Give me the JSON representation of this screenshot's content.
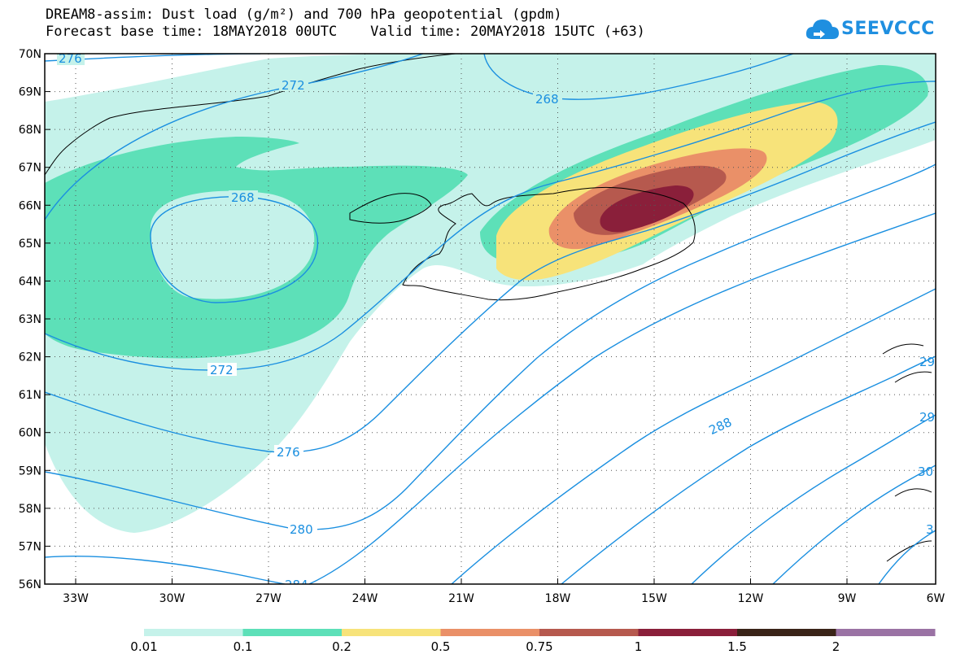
{
  "title_line1": "DREAM8-assim: Dust load (g/m²) and 700 hPa geopotential (gpdm)",
  "title_line2": "Forecast base time: 18MAY2018 00UTC    Valid time: 20MAY2018 15UTC (+63)",
  "logo": {
    "text": "SEEVCCC",
    "icon": "cloud-icon",
    "color": "#1f8fe0"
  },
  "axes": {
    "lon_labels": [
      "33W",
      "30W",
      "27W",
      "24W",
      "21W",
      "18W",
      "15W",
      "12W",
      "9W",
      "6W"
    ],
    "lat_labels": [
      "70N",
      "69N",
      "68N",
      "67N",
      "66N",
      "65N",
      "64N",
      "63N",
      "62N",
      "61N",
      "60N",
      "59N",
      "58N",
      "57N",
      "56N"
    ]
  },
  "contour_labels": [
    "276",
    "272",
    "268",
    "268",
    "272",
    "276",
    "280",
    "284",
    "288",
    "29",
    "29",
    "30",
    "3"
  ],
  "colorbar": {
    "labels": [
      "0.01",
      "0.1",
      "0.2",
      "0.5",
      "0.75",
      "1",
      "1.5",
      "2"
    ],
    "colors": [
      "#c5f2ea",
      "#5de0b8",
      "#f7e37a",
      "#ea9068",
      "#b6594e",
      "#8a1f3a",
      "#3a2418",
      "#9a72a4"
    ]
  },
  "colors": {
    "contour": "#1a8fe0",
    "level1": "#c5f2ea",
    "level2": "#5de0b8",
    "level3": "#f7e37a",
    "level4": "#ea9068",
    "level5": "#b6594e",
    "level6": "#8a1f3a"
  }
}
